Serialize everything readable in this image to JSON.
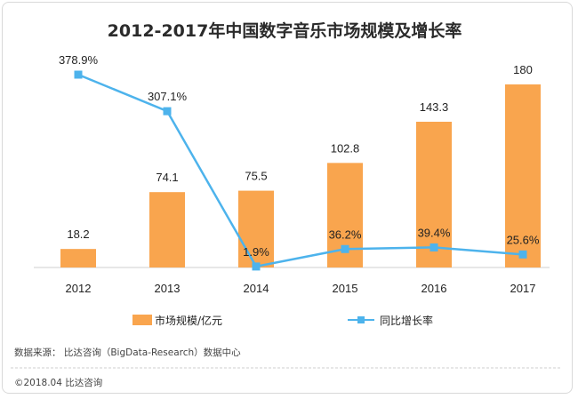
{
  "chart_data": {
    "type": "bar",
    "title": "2012-2017年中国数字音乐市场规模及增长率",
    "categories": [
      "2012",
      "2013",
      "2014",
      "2015",
      "2016",
      "2017"
    ],
    "series": [
      {
        "name": "市场规模/亿元",
        "type": "bar",
        "axis": "left",
        "color": "#F9A54E",
        "values": [
          18.2,
          74.1,
          75.5,
          102.8,
          143.3,
          180
        ],
        "labels": [
          "18.2",
          "74.1",
          "75.5",
          "102.8",
          "143.3",
          "180"
        ]
      },
      {
        "name": "同比增长率",
        "type": "line",
        "axis": "right",
        "color": "#4DB3EC",
        "values": [
          378.9,
          307.1,
          1.9,
          36.2,
          39.4,
          25.6
        ],
        "labels": [
          "378.9%",
          "307.1%",
          "1.9%",
          "36.2%",
          "39.4%",
          "25.6%"
        ]
      }
    ],
    "ylim": [
      0,
      200
    ],
    "y2lim": [
      0,
      400
    ],
    "grid": false,
    "legend": "bottom"
  },
  "footer": {
    "source": "数据来源：  比达咨询（BigData-Research）数据中心",
    "copyright": "©2018.04   比达咨询"
  }
}
